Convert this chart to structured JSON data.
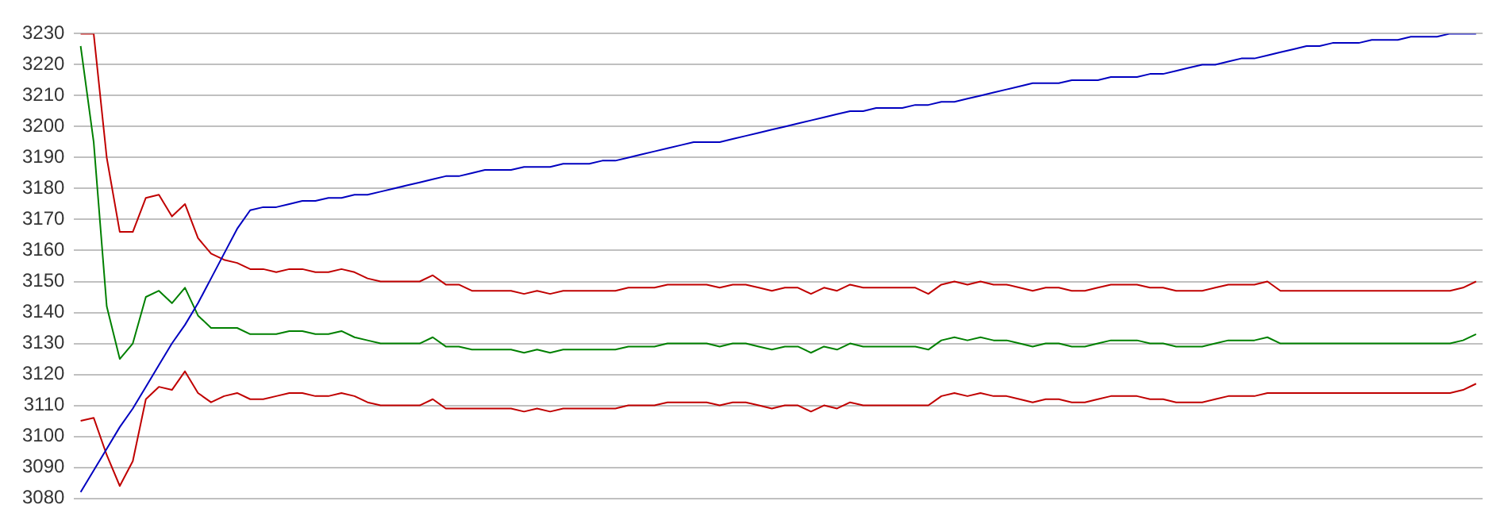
{
  "chart_data": {
    "type": "line",
    "categories": [
      null,
      null,
      null,
      null,
      null,
      null,
      null,
      null,
      null,
      null,
      null,
      null,
      null,
      null,
      null,
      null,
      null,
      null,
      null,
      null,
      null,
      null,
      null,
      null,
      null,
      null,
      null,
      null,
      null,
      null,
      null,
      null,
      null,
      null,
      null,
      null,
      null,
      null,
      null,
      null,
      null,
      null,
      null,
      null,
      null,
      null,
      null,
      null,
      null,
      null,
      null,
      null,
      null,
      null,
      null,
      null,
      null,
      null,
      null,
      null,
      null,
      null,
      null,
      null,
      null,
      null,
      null,
      null,
      null,
      null,
      null,
      null,
      null,
      null,
      null,
      null,
      null,
      null,
      null,
      null,
      null,
      null,
      null,
      null,
      null,
      null,
      null,
      null,
      null,
      null,
      null,
      null,
      null,
      null,
      null,
      null,
      null,
      null,
      null,
      null,
      null,
      null,
      null,
      null,
      null,
      null,
      null,
      null
    ],
    "series": [
      {
        "color": "#0000c0",
        "values": [
          3082,
          3089,
          3096,
          3103,
          3109,
          3116,
          3123,
          3130,
          3136,
          3143,
          3151,
          3159,
          3167,
          3173,
          3174,
          3174,
          3175,
          3176,
          3176,
          3177,
          3177,
          3178,
          3178,
          3179,
          3180,
          3181,
          3182,
          3183,
          3184,
          3184,
          3185,
          3186,
          3186,
          3186,
          3187,
          3187,
          3187,
          3188,
          3188,
          3188,
          3189,
          3189,
          3190,
          3191,
          3192,
          3193,
          3194,
          3195,
          3195,
          3195,
          3196,
          3197,
          3198,
          3199,
          3200,
          3201,
          3202,
          3203,
          3204,
          3205,
          3205,
          3206,
          3206,
          3206,
          3207,
          3207,
          3208,
          3208,
          3209,
          3210,
          3211,
          3212,
          3213,
          3214,
          3214,
          3214,
          3215,
          3215,
          3215,
          3216,
          3216,
          3216,
          3217,
          3217,
          3218,
          3219,
          3220,
          3220,
          3221,
          3222,
          3222,
          3223,
          3224,
          3225,
          3226,
          3226,
          3227,
          3227,
          3227,
          3228,
          3228,
          3228,
          3229,
          3229,
          3229,
          3230,
          3230,
          3230
        ]
      },
      {
        "color": "#c00000",
        "values": [
          3230,
          3230,
          3190,
          3166,
          3166,
          3177,
          3178,
          3171,
          3175,
          3164,
          3159,
          3157,
          3156,
          3154,
          3154,
          3153,
          3154,
          3154,
          3153,
          3153,
          3154,
          3153,
          3151,
          3150,
          3150,
          3150,
          3150,
          3152,
          3149,
          3149,
          3147,
          3147,
          3147,
          3147,
          3146,
          3147,
          3146,
          3147,
          3147,
          3147,
          3147,
          3147,
          3148,
          3148,
          3148,
          3149,
          3149,
          3149,
          3149,
          3148,
          3149,
          3149,
          3148,
          3147,
          3148,
          3148,
          3146,
          3148,
          3147,
          3149,
          3148,
          3148,
          3148,
          3148,
          3148,
          3146,
          3149,
          3150,
          3149,
          3150,
          3149,
          3149,
          3148,
          3147,
          3148,
          3148,
          3147,
          3147,
          3148,
          3149,
          3149,
          3149,
          3148,
          3148,
          3147,
          3147,
          3147,
          3148,
          3149,
          3149,
          3149,
          3150,
          3147,
          3147,
          3147,
          3147,
          3147,
          3147,
          3147,
          3147,
          3147,
          3147,
          3147,
          3147,
          3147,
          3147,
          3148,
          3150
        ]
      },
      {
        "color": "#008000",
        "values": [
          3226,
          3195,
          3142,
          3125,
          3130,
          3145,
          3147,
          3143,
          3148,
          3139,
          3135,
          3135,
          3135,
          3133,
          3133,
          3133,
          3134,
          3134,
          3133,
          3133,
          3134,
          3132,
          3131,
          3130,
          3130,
          3130,
          3130,
          3132,
          3129,
          3129,
          3128,
          3128,
          3128,
          3128,
          3127,
          3128,
          3127,
          3128,
          3128,
          3128,
          3128,
          3128,
          3129,
          3129,
          3129,
          3130,
          3130,
          3130,
          3130,
          3129,
          3130,
          3130,
          3129,
          3128,
          3129,
          3129,
          3127,
          3129,
          3128,
          3130,
          3129,
          3129,
          3129,
          3129,
          3129,
          3128,
          3131,
          3132,
          3131,
          3132,
          3131,
          3131,
          3130,
          3129,
          3130,
          3130,
          3129,
          3129,
          3130,
          3131,
          3131,
          3131,
          3130,
          3130,
          3129,
          3129,
          3129,
          3130,
          3131,
          3131,
          3131,
          3132,
          3130,
          3130,
          3130,
          3130,
          3130,
          3130,
          3130,
          3130,
          3130,
          3130,
          3130,
          3130,
          3130,
          3130,
          3131,
          3133
        ]
      },
      {
        "color": "#c00000",
        "values": [
          3105,
          3106,
          3094,
          3084,
          3092,
          3112,
          3116,
          3115,
          3121,
          3114,
          3111,
          3113,
          3114,
          3112,
          3112,
          3113,
          3114,
          3114,
          3113,
          3113,
          3114,
          3113,
          3111,
          3110,
          3110,
          3110,
          3110,
          3112,
          3109,
          3109,
          3109,
          3109,
          3109,
          3109,
          3108,
          3109,
          3108,
          3109,
          3109,
          3109,
          3109,
          3109,
          3110,
          3110,
          3110,
          3111,
          3111,
          3111,
          3111,
          3110,
          3111,
          3111,
          3110,
          3109,
          3110,
          3110,
          3108,
          3110,
          3109,
          3111,
          3110,
          3110,
          3110,
          3110,
          3110,
          3110,
          3113,
          3114,
          3113,
          3114,
          3113,
          3113,
          3112,
          3111,
          3112,
          3112,
          3111,
          3111,
          3112,
          3113,
          3113,
          3113,
          3112,
          3112,
          3111,
          3111,
          3111,
          3112,
          3113,
          3113,
          3113,
          3114,
          3114,
          3114,
          3114,
          3114,
          3114,
          3114,
          3114,
          3114,
          3114,
          3114,
          3114,
          3114,
          3114,
          3114,
          3115,
          3117
        ]
      }
    ],
    "ylim": [
      3080,
      3230
    ],
    "yticks": [
      3080,
      3090,
      3100,
      3110,
      3120,
      3130,
      3140,
      3150,
      3160,
      3170,
      3180,
      3190,
      3200,
      3210,
      3220,
      3230
    ],
    "grid": "y",
    "legend": false,
    "tick_labels": "y",
    "marker": "none",
    "line_style": "solid"
  }
}
